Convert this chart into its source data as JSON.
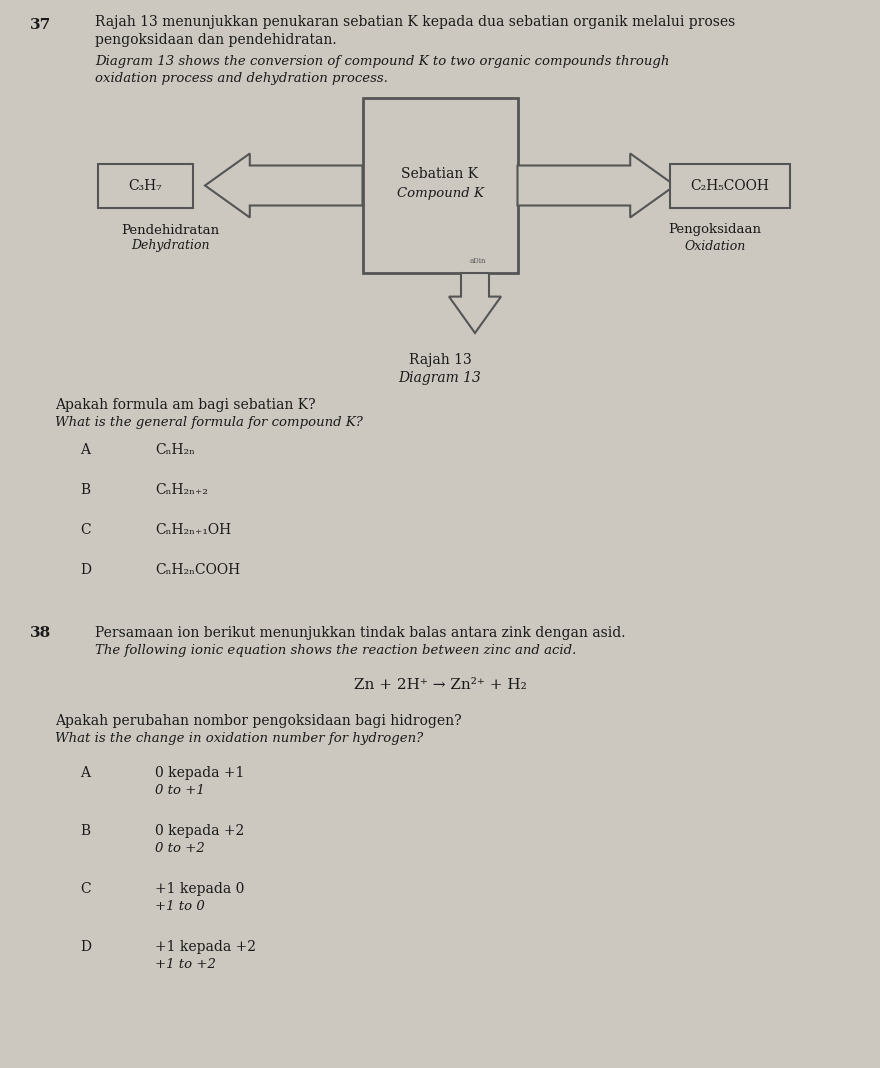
{
  "bg_color": "#ccc8c0",
  "text_color": "#1a1a1a",
  "q37_number": "37",
  "q37_text_line1": "Rajah 13 menunjukkan penukaran sebatian K kepada dua sebatian organik melalui proses",
  "q37_text_line2": "pengoksidaan dan pendehidratan.",
  "q37_italic_line1": "Diagram 13 shows the conversion of compound K to two organic compounds through",
  "q37_italic_line2": "oxidation process and dehydration process.",
  "center_label1": "Sebatian K",
  "center_label2": "Compound K",
  "left_box_label": "C₃H₇",
  "right_box_label": "C₂H₅COOH",
  "left_process_line1": "Pendehidratan",
  "left_process_line2": "Dehydration",
  "right_process_line1": "Pengoksidaan",
  "right_process_line2": "Oxidation",
  "diagram_caption1": "Rajah 13",
  "diagram_caption2": "Diagram 13",
  "q37_question_line1": "Apakah formula am bagi sebatian K?",
  "q37_question_line2": "What is the general formula for compound K?",
  "option_A_label": "A",
  "option_A_text": "CₙH₂ₙ",
  "option_B_label": "B",
  "option_B_text": "CₙH₂ₙ₊₂",
  "option_C_label": "C",
  "option_C_text": "CₙH₂ₙ₊₁OH",
  "option_D_label": "D",
  "option_D_text": "CₙH₂ₙCOOH",
  "q38_number": "38",
  "q38_text_line1": "Persamaan ion berikut menunjukkan tindak balas antara zink dengan asid.",
  "q38_italic_line1": "The following ionic equation shows the reaction between zinc and acid.",
  "q38_equation": "Zn + 2H⁺ → Zn²⁺ + H₂",
  "q38_question_line1": "Apakah perubahan nombor pengoksidaan bagi hidrogen?",
  "q38_question_line2": "What is the change in oxidation number for hydrogen?",
  "q38_A_line1": "0 kepada +1",
  "q38_A_line2": "0 to +1",
  "q38_B_line1": "0 kepada +2",
  "q38_B_line2": "0 to +2",
  "q38_C_line1": "+1 kepada 0",
  "q38_C_line2": "+1 to 0",
  "q38_D_line1": "+1 kepada +2",
  "q38_D_line2": "+1 to +2"
}
